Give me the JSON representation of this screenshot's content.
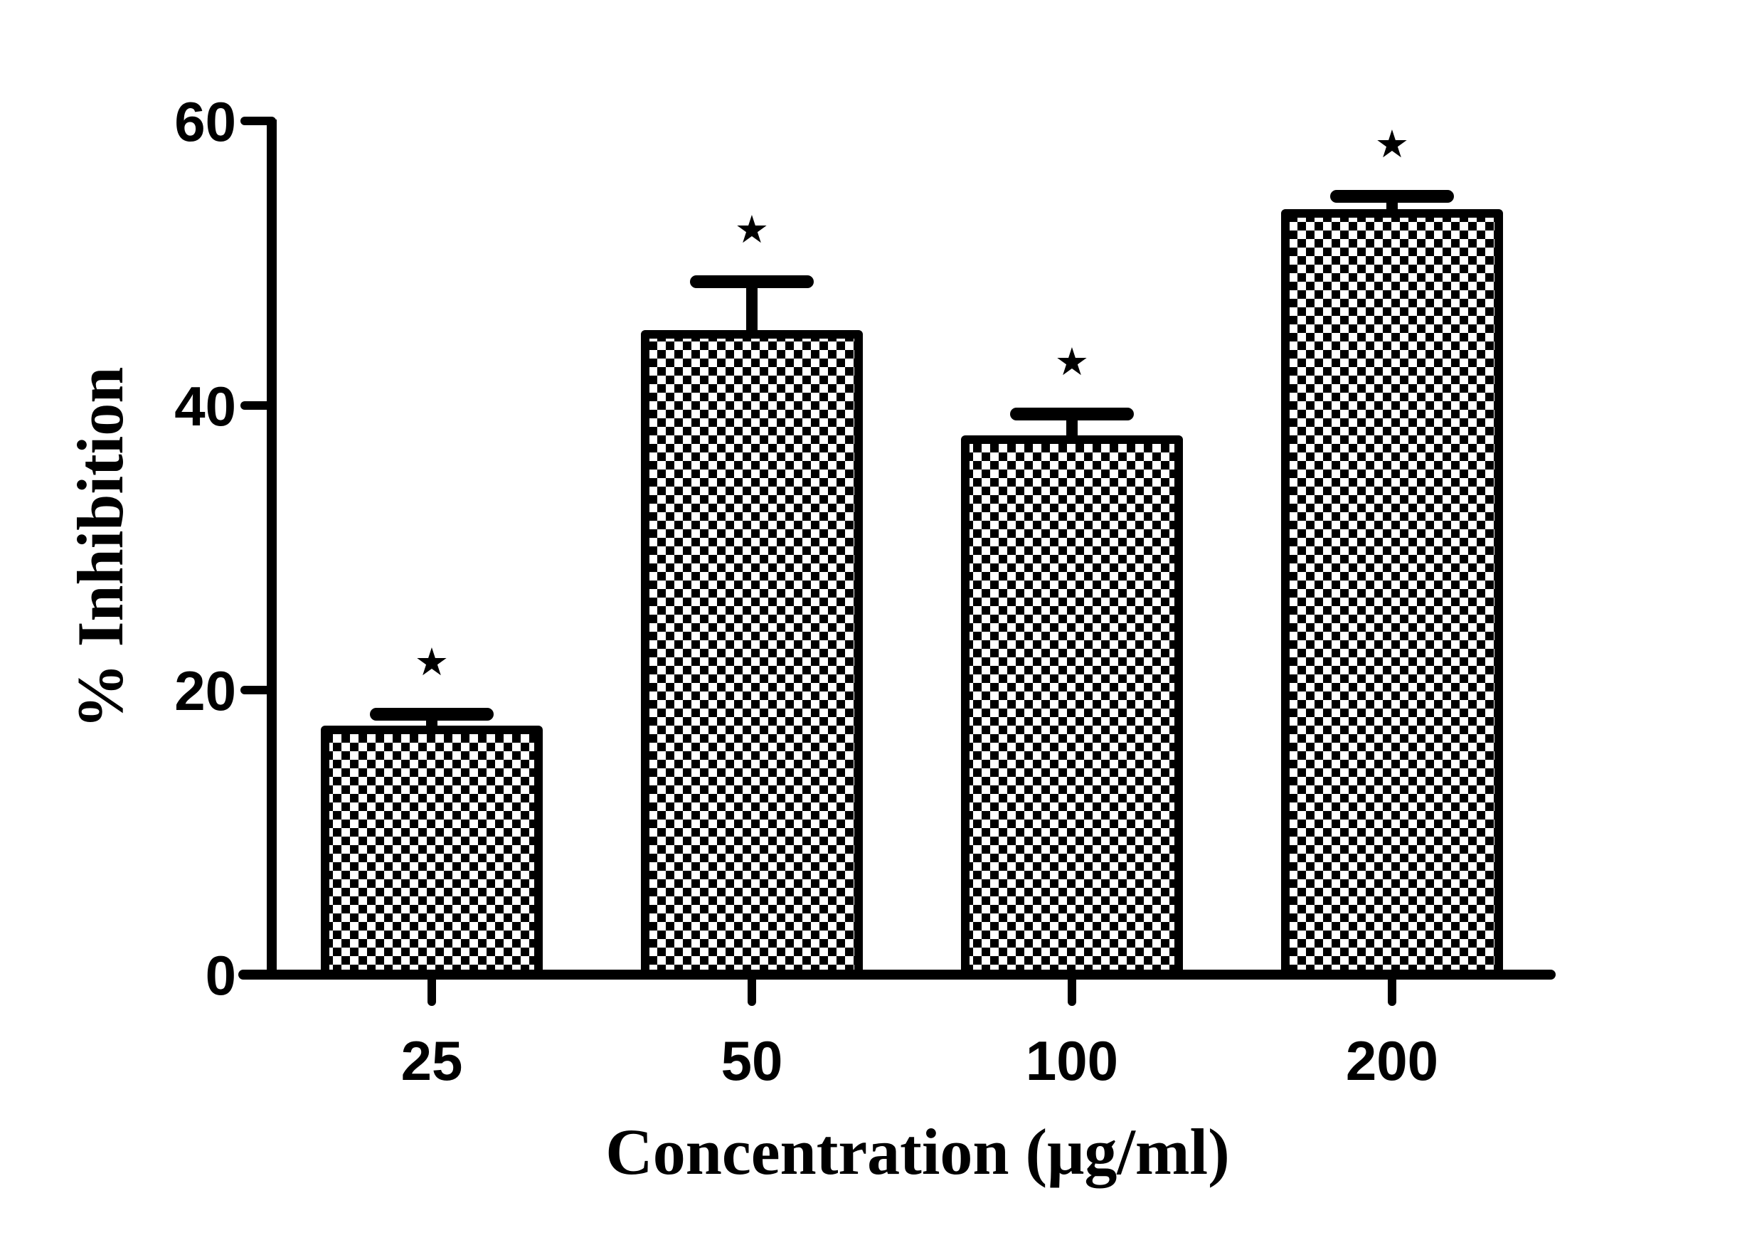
{
  "chart_data": {
    "type": "bar",
    "title": "",
    "xlabel": "Concentration (μg/ml)",
    "ylabel": "% Inhibition",
    "categories": [
      "25",
      "50",
      "100",
      "200"
    ],
    "values": [
      17.2,
      45.0,
      37.6,
      53.5
    ],
    "error_upper": [
      18.3,
      48.7,
      39.4,
      54.7
    ],
    "significance": [
      "★",
      "★",
      "★",
      "★"
    ],
    "ylim": [
      0,
      60
    ],
    "yticks": [
      0,
      20,
      40,
      60
    ],
    "ytick_labels": [
      "0",
      "20",
      "40",
      "60"
    ],
    "grid": false,
    "legend": "none",
    "bar_fill_pattern": "checkerboard",
    "colors": {
      "bar_fill_dark": "#000000",
      "bar_fill_light": "#ffffff",
      "axis": "#000000"
    }
  }
}
